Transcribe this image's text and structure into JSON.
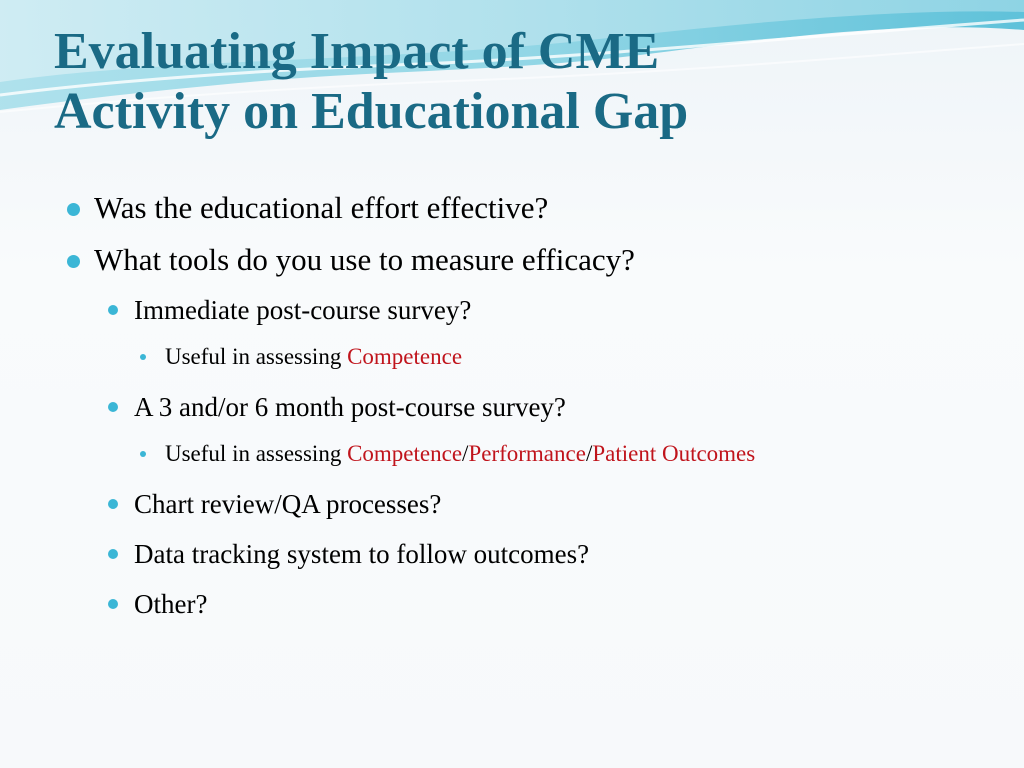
{
  "slide": {
    "title_line1": "Evaluating Impact of CME",
    "title_line2": "Activity on Educational Gap",
    "bullets": {
      "b1": "Was the educational effort effective?",
      "b2": "What tools do you use to measure efficacy?",
      "b3": "Immediate post-course survey?",
      "b4_prefix": "Useful in assessing ",
      "b4_competence": "Competence",
      "b5": "A 3 and/or 6 month post-course survey?",
      "b6_prefix": "Useful in assessing ",
      "b6_competence": "Competence",
      "b6_sep1": "/",
      "b6_performance": "Performance",
      "b6_sep2": "/",
      "b6_patient_outcomes": "Patient Outcomes",
      "b7": "Chart review/QA processes?",
      "b8": "Data tracking system to follow outcomes?",
      "b9": "Other?"
    }
  },
  "colors": {
    "title": "#1a6a85",
    "bullet_marker": "#3bb6d6",
    "highlight": "#c0141c",
    "wave": "#5cc3d8"
  },
  "icons": {
    "bullet": "filled-circle"
  }
}
